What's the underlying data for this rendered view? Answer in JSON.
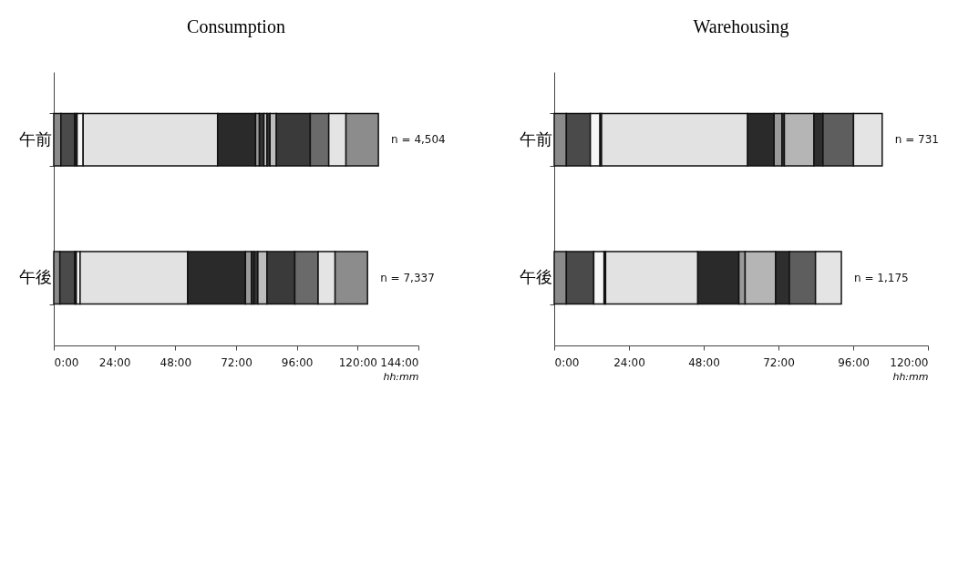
{
  "chart_data": [
    {
      "type": "bar",
      "title": "Consumption",
      "orientation": "horizontal",
      "stacked": true,
      "categories": [
        "午前",
        "午後"
      ],
      "xlabel": "hh:mm",
      "xlim": [
        0,
        144
      ],
      "xticks": [
        {
          "value": 0,
          "label": "0:00"
        },
        {
          "value": 24,
          "label": "24:00"
        },
        {
          "value": 48,
          "label": "48:00"
        },
        {
          "value": 72,
          "label": "72:00"
        },
        {
          "value": 96,
          "label": "96:00"
        },
        {
          "value": 120,
          "label": "120:00"
        },
        {
          "value": 144,
          "label": "144:00"
        }
      ],
      "grid": false,
      "legend": false,
      "series": [
        {
          "color": "#8a8a8a",
          "values": [
            2.8,
            2.4
          ]
        },
        {
          "color": "#4a4a4a",
          "values": [
            5.5,
            5.9
          ]
        },
        {
          "color": "#222222",
          "values": [
            0.9,
            0.6
          ]
        },
        {
          "color": "#f7f7f7",
          "values": [
            2.4,
            1.5
          ]
        },
        {
          "color": "#e2e2e2",
          "values": [
            53.1,
            42.5
          ]
        },
        {
          "color": "#2a2a2a",
          "values": [
            15.0,
            22.8
          ]
        },
        {
          "color": "#9a9a9a",
          "values": [
            1.5,
            2.4
          ]
        },
        {
          "color": "#333333",
          "values": [
            1.8,
            1.0
          ]
        },
        {
          "color": "#c8c8c8",
          "values": [
            1.2,
            null
          ]
        },
        {
          "color": "#333333",
          "values": [
            1.2,
            1.5
          ]
        },
        {
          "color": "#bdbdbd",
          "values": [
            2.5,
            3.6
          ]
        },
        {
          "color": "#3a3a3a",
          "values": [
            13.4,
            11.0
          ]
        },
        {
          "color": "#6a6a6a",
          "values": [
            7.3,
            9.2
          ]
        },
        {
          "color": "#e4e4e4",
          "values": [
            6.8,
            6.7
          ]
        },
        {
          "color": "#8c8c8c",
          "values": [
            12.8,
            12.8
          ]
        }
      ],
      "annotations": [
        "n = 4,504",
        "n = 7,337"
      ]
    },
    {
      "type": "bar",
      "title": "Warehousing",
      "orientation": "horizontal",
      "stacked": true,
      "categories": [
        "午前",
        "午後"
      ],
      "xlabel": "hh:mm",
      "xlim": [
        0,
        120
      ],
      "xticks": [
        {
          "value": 0,
          "label": "0:00"
        },
        {
          "value": 24,
          "label": "24:00"
        },
        {
          "value": 48,
          "label": "48:00"
        },
        {
          "value": 72,
          "label": "72:00"
        },
        {
          "value": 96,
          "label": "96:00"
        },
        {
          "value": 120,
          "label": "120:00"
        }
      ],
      "grid": false,
      "legend": false,
      "series": [
        {
          "color": "#8a8a8a",
          "values": [
            3.9,
            3.9
          ]
        },
        {
          "color": "#4a4a4a",
          "values": [
            7.7,
            8.8
          ]
        },
        {
          "color": "#f7f7f7",
          "values": [
            3.1,
            3.3
          ]
        },
        {
          "color": "#222222",
          "values": [
            0.5,
            0.5
          ]
        },
        {
          "color": "#e2e2e2",
          "values": [
            46.9,
            29.6
          ]
        },
        {
          "color": "#2a2a2a",
          "values": [
            8.5,
            13.2
          ]
        },
        {
          "color": "#9a9a9a",
          "values": [
            2.5,
            2.0
          ]
        },
        {
          "color": "#333333",
          "values": [
            0.8,
            null
          ]
        },
        {
          "color": "#b5b5b5",
          "values": [
            9.5,
            9.8
          ]
        },
        {
          "color": "#2e2e2e",
          "values": [
            2.9,
            4.4
          ]
        },
        {
          "color": "#5e5e5e",
          "values": [
            9.8,
            8.4
          ]
        },
        {
          "color": "#e4e4e4",
          "values": [
            9.2,
            8.3
          ]
        }
      ],
      "annotations": [
        "n = 731",
        "n = 1,175"
      ]
    }
  ]
}
